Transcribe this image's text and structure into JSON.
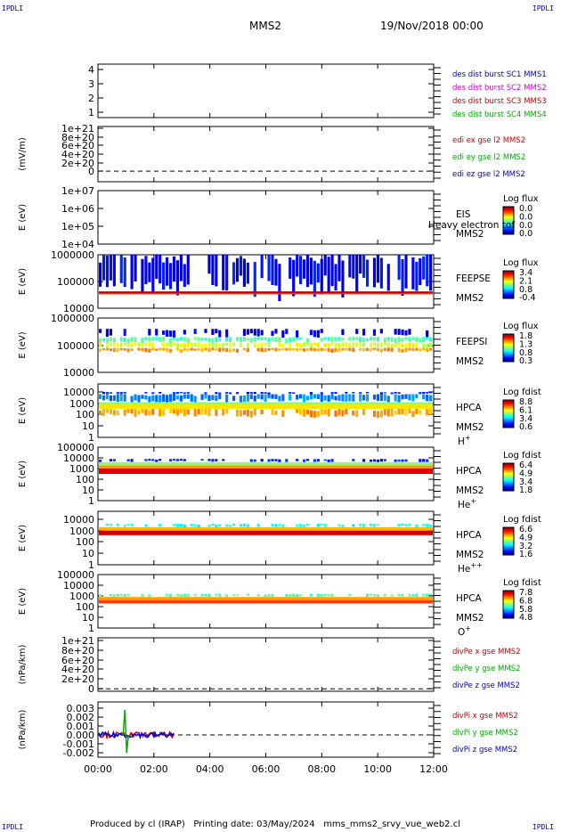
{
  "corner_label": "IPDLI",
  "header": {
    "spacecraft": "MMS2",
    "datetime": "19/Nov/2018 00:00"
  },
  "footer": {
    "text": "Produced by cl (IRAP)   Printing date: 03/May/2024   mms_mms2_srvy_vue_web2.cl"
  },
  "colors": {
    "frame": "#000000",
    "legend_blue": "#0000cc",
    "legend_magenta": "#cc00cc",
    "legend_red": "#cc0000",
    "legend_green": "#00aa00"
  },
  "chart_data": {
    "type": "heatmap",
    "x_axis": {
      "ticks": [
        "00:00",
        "02:00",
        "04:00",
        "06:00",
        "08:00",
        "10:00",
        "12:00"
      ],
      "range_hours": [
        0,
        12
      ]
    },
    "panels": [
      {
        "id": "burst",
        "type": "line",
        "ylabel": "",
        "yticks": [
          "1",
          "2",
          "3",
          "4"
        ],
        "ylim": [
          0.6,
          4.4
        ],
        "legend": [
          {
            "text": "des dist burst SC1 MMS1",
            "color": "#0000cc"
          },
          {
            "text": "des dist burst SC2 MMS2",
            "color": "#cc00cc"
          },
          {
            "text": "des dist burst SC3 MMS3",
            "color": "#cc0000"
          },
          {
            "text": "des dist burst SC4 MMS4",
            "color": "#00aa00"
          }
        ]
      },
      {
        "id": "edi",
        "type": "line",
        "ylabel": "(mV/m)",
        "yticks": [
          "0",
          "2e+20",
          "4e+20",
          "6e+20",
          "8e+20",
          "1e+21"
        ],
        "ylim": [
          -0.25,
          1.05
        ],
        "zero_line": true,
        "legend": [
          {
            "text": "edi ex gse l2 MMS2",
            "color": "#cc0000"
          },
          {
            "text": "edi ey gse l2 MMS2",
            "color": "#00aa00"
          },
          {
            "text": "edi ez gse l2 MMS2",
            "color": "#0000cc"
          }
        ]
      },
      {
        "id": "eis",
        "type": "heatmap",
        "ylabel": "E (eV)",
        "yticks": [
          "1e+04",
          "1e+05",
          "1e+06",
          "1e+07"
        ],
        "logmin": 4,
        "logmax": 7,
        "instrument": [
          "EIS",
          "MMS2"
        ],
        "overlay": "Heavy electron tof",
        "colorbar": {
          "title": "Log flux",
          "ticks": [
            "0.0",
            "0.0",
            "0.0",
            "0.0"
          ]
        }
      },
      {
        "id": "feepse",
        "type": "heatmap",
        "ylabel": "E (eV)",
        "yticks": [
          "10000",
          "100000",
          "1000000"
        ],
        "logmin": 4,
        "logmax": 6,
        "instrument": [
          "FEEPSE",
          "MMS2"
        ],
        "colorbar": {
          "title": "Log flux",
          "ticks": [
            "3.4",
            "2.1",
            "0.8",
            "-0.4"
          ]
        }
      },
      {
        "id": "feepsi",
        "type": "heatmap",
        "ylabel": "E (eV)",
        "yticks": [
          "10000",
          "100000",
          "1000000"
        ],
        "logmin": 4,
        "logmax": 6,
        "instrument": [
          "FEEPSI",
          "MMS2"
        ],
        "colorbar": {
          "title": "Log flux",
          "ticks": [
            "1.8",
            "1.3",
            "0.8",
            "0.3"
          ]
        }
      },
      {
        "id": "hpca_h",
        "type": "heatmap",
        "ylabel": "E (eV)",
        "yticks": [
          "1",
          "10",
          "100",
          "1000",
          "10000"
        ],
        "logmin": 0,
        "logmax": 4.7,
        "instrument": [
          "HPCA",
          "MMS2"
        ],
        "species": "H",
        "charge": "+",
        "colorbar": {
          "title": "Log fdist",
          "ticks": [
            "8.8",
            "6.1",
            "3.4",
            "0.6"
          ]
        }
      },
      {
        "id": "hpca_he1",
        "type": "heatmap",
        "ylabel": "E (eV)",
        "yticks": [
          "1",
          "10",
          "100",
          "1000",
          "10000",
          "100000"
        ],
        "logmin": 0,
        "logmax": 5,
        "instrument": [
          "HPCA",
          "MMS2"
        ],
        "species": "He",
        "charge": "+",
        "colorbar": {
          "title": "Log fdist",
          "ticks": [
            "6.4",
            "4.9",
            "3.4",
            "1.8"
          ]
        }
      },
      {
        "id": "hpca_he2",
        "type": "heatmap",
        "ylabel": "E (eV)",
        "yticks": [
          "1",
          "10",
          "100",
          "1000",
          "10000"
        ],
        "logmin": 0,
        "logmax": 4.7,
        "instrument": [
          "HPCA",
          "MMS2"
        ],
        "species": "He",
        "charge": "++",
        "colorbar": {
          "title": "Log fdist",
          "ticks": [
            "6.6",
            "4.9",
            "3.2",
            "1.6"
          ]
        }
      },
      {
        "id": "hpca_o",
        "type": "heatmap",
        "ylabel": "E (eV)",
        "yticks": [
          "1",
          "10",
          "100",
          "1000",
          "10000",
          "100000"
        ],
        "logmin": 0,
        "logmax": 5,
        "instrument": [
          "HPCA",
          "MMS2"
        ],
        "species": "O",
        "charge": "+",
        "colorbar": {
          "title": "Log fdist",
          "ticks": [
            "7.8",
            "6.8",
            "5.8",
            "4.8"
          ]
        }
      },
      {
        "id": "divpe",
        "type": "line",
        "ylabel": "(nPa/km)",
        "yticks": [
          "0",
          "2e+20",
          "4e+20",
          "6e+20",
          "8e+20",
          "1e+21"
        ],
        "ylim": [
          -0.05,
          1.05
        ],
        "zero_line": true,
        "legend": [
          {
            "text": "divPe x gse MMS2",
            "color": "#cc0000"
          },
          {
            "text": "divPe y gse MMS2",
            "color": "#00aa00"
          },
          {
            "text": "divPe z gse MMS2",
            "color": "#0000cc"
          }
        ]
      },
      {
        "id": "divpi",
        "type": "line",
        "ylabel": "(nPa/km)",
        "yticks": [
          "-0.002",
          "-0.001",
          "0.000",
          "0.001",
          "0.002",
          "0.003"
        ],
        "ylim": [
          -0.0025,
          0.0037
        ],
        "zero_line": true,
        "data_end_hour": 2.75,
        "legend": [
          {
            "text": "divPi x gse MMS2",
            "color": "#cc0000"
          },
          {
            "text": "divPi y gse MMS2",
            "color": "#00aa00"
          },
          {
            "text": "divPi z gse MMS2",
            "color": "#0000cc"
          }
        ]
      }
    ]
  }
}
